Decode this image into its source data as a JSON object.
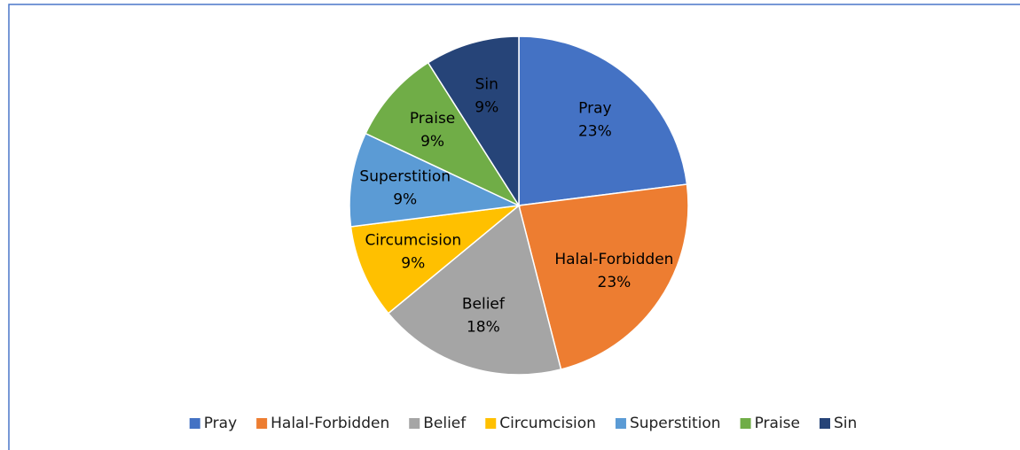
{
  "chart_data": {
    "type": "pie",
    "categories": [
      "Pray",
      "Halal-Forbidden",
      "Belief",
      "Circumcision",
      "Superstition",
      "Praise",
      "Sin"
    ],
    "values": [
      23,
      23,
      18,
      9,
      9,
      9,
      9
    ],
    "value_labels": [
      "23%",
      "23%",
      "18%",
      "9%",
      "9%",
      "9%",
      "9%"
    ],
    "colors": [
      "#4472c4",
      "#ed7d31",
      "#a5a5a5",
      "#ffc000",
      "#5b9bd5",
      "#70ad47",
      "#264478"
    ],
    "legend": "bottom"
  }
}
